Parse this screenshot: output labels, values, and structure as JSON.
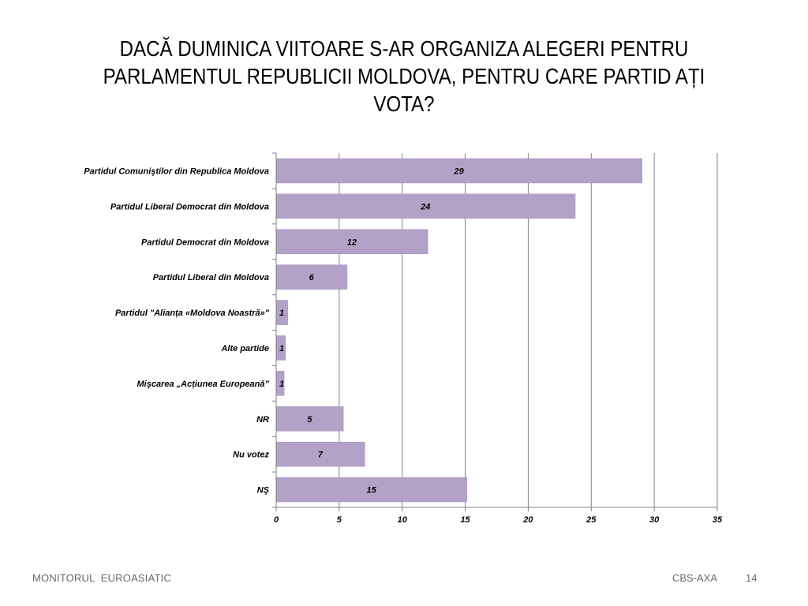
{
  "slide": {
    "title_lines": [
      "DACĂ DUMINICA VIITOARE S-AR ORGANIZA ALEGERI PENTRU",
      "PARLAMENTUL REPUBLICII MOLDOVA, PENTRU CARE PARTID AȚI",
      "VOTA?"
    ],
    "footer_left": "MONITORUL  EUROASIATIC",
    "footer_right": "CBS-AXA",
    "page_number": "14"
  },
  "colors": {
    "bar": "#b3a2c7",
    "bar_border": "#a590bd",
    "grid": "#808080",
    "axis": "#808080"
  },
  "chart_data": {
    "type": "bar",
    "orientation": "horizontal",
    "categories": [
      "Partidul Comuniştilor din Republica Moldova",
      "Partidul  Liberal Democrat din Moldova",
      "Partidul Democrat din Moldova",
      "Partidul  Liberal din Moldova",
      "Partidul \"Alianța «Moldova Noastră»\"",
      "Alte partide",
      "Mişcarea „Acțiunea Europeană”",
      "NR",
      "Nu votez",
      "NŞ"
    ],
    "values": [
      29,
      23.7,
      12,
      5.6,
      0.9,
      0.7,
      0.6,
      5.3,
      7,
      15.1
    ],
    "data_labels": [
      "29",
      "24",
      "12",
      "6",
      "1",
      "1",
      "1",
      "5",
      "7",
      "15"
    ],
    "xlim": [
      0,
      35
    ],
    "xticks": [
      0,
      5,
      10,
      15,
      20,
      25,
      30,
      35
    ],
    "grid": true,
    "legend": "none",
    "title": "",
    "xlabel": "",
    "ylabel": ""
  }
}
